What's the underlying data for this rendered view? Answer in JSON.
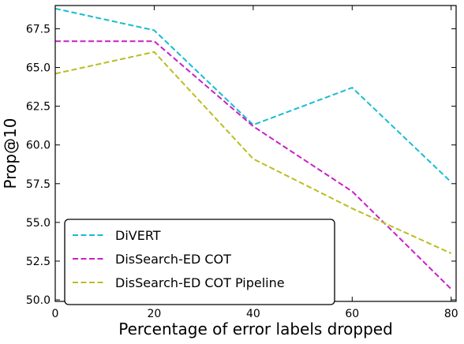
{
  "chart_data": {
    "type": "line",
    "xlabel": "Percentage of error labels dropped",
    "ylabel": "Prop@10",
    "x": [
      0,
      20,
      40,
      60,
      80
    ],
    "xlim": [
      0,
      81
    ],
    "ylim": [
      49.9,
      69.0
    ],
    "xticks": [
      0,
      20,
      40,
      60,
      80
    ],
    "yticks": [
      50.0,
      52.5,
      55.0,
      57.5,
      60.0,
      62.5,
      65.0,
      67.5
    ],
    "ytick_labels": [
      "50.0",
      "52.5",
      "55.0",
      "57.5",
      "60.0",
      "62.5",
      "65.0",
      "67.5"
    ],
    "grid": false,
    "legend_position": "lower-left",
    "series": [
      {
        "name": "DiVERT",
        "color": "#17becf",
        "style": "dashed",
        "values": [
          68.8,
          67.4,
          61.3,
          63.7,
          57.6
        ]
      },
      {
        "name": "DisSearch-ED COT",
        "color": "#c81fc8",
        "style": "dashed",
        "values": [
          66.7,
          66.7,
          61.2,
          57.0,
          50.7
        ]
      },
      {
        "name": "DisSearch-ED COT Pipeline",
        "color": "#bcbd22",
        "style": "dashed",
        "values": [
          64.6,
          66.0,
          59.1,
          55.9,
          53.0
        ]
      }
    ]
  }
}
